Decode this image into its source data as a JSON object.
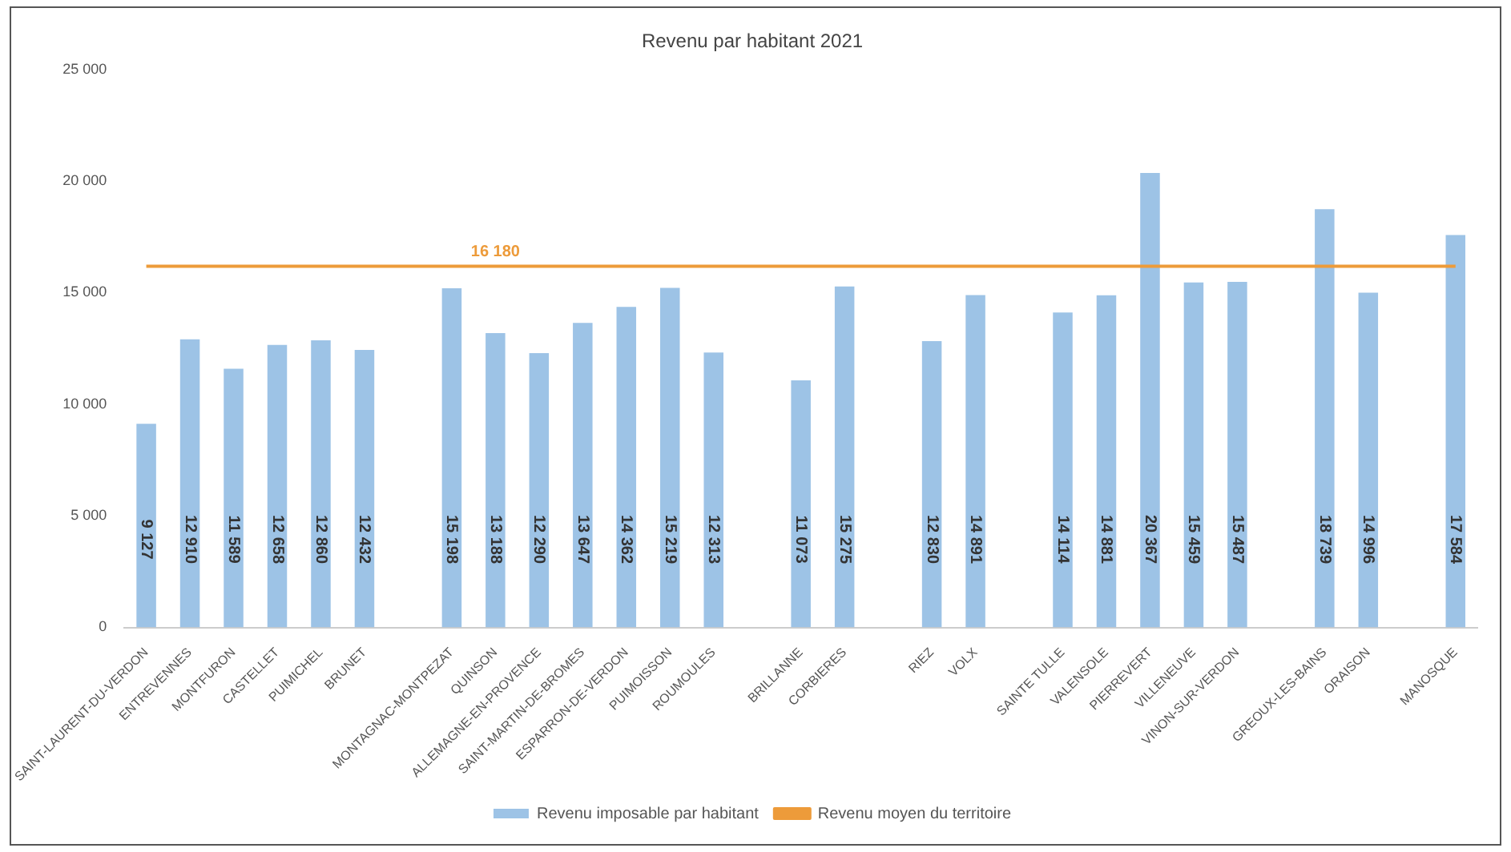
{
  "chart_data": {
    "type": "bar",
    "title": "Revenu par habitant 2021",
    "categories": [
      "SAINT-LAURENT-DU-VERDON",
      "ENTREVENNES",
      "MONTFURON",
      "CASTELLET",
      "PUIMICHEL",
      "BRUNET",
      null,
      "MONTAGNAC-MONTPEZAT",
      "QUINSON",
      "ALLEMAGNE-EN-PROVENCE",
      "SAINT-MARTIN-DE-BROMES",
      "ESPARRON-DE-VERDON",
      "PUIMOISSON",
      "ROUMOULES",
      null,
      "BRILLANNE",
      "CORBIERES",
      null,
      "RIEZ",
      "VOLX",
      null,
      "SAINTE TULLE",
      "VALENSOLE",
      "PIERREVERT",
      "VILLENEUVE",
      "VINON-SUR-VERDON",
      null,
      "GREOUX-LES-BAINS",
      "ORAISON",
      null,
      "MANOSQUE"
    ],
    "series": [
      {
        "name": "Revenu imposable par habitant",
        "color": "#9dc3e6",
        "values": [
          9127,
          12910,
          11589,
          12658,
          12860,
          12432,
          null,
          15198,
          13188,
          12290,
          13647,
          14362,
          15219,
          12313,
          null,
          11073,
          15275,
          null,
          12830,
          14891,
          null,
          14114,
          14881,
          20367,
          15459,
          15487,
          null,
          18739,
          14996,
          null,
          17584
        ],
        "value_labels": [
          "9 127",
          "12 910",
          "11 589",
          "12 658",
          "12 860",
          "12 432",
          null,
          "15 198",
          "13 188",
          "12 290",
          "13 647",
          "14 362",
          "15 219",
          "12 313",
          null,
          "11 073",
          "15 275",
          null,
          "12 830",
          "14 891",
          null,
          "14 114",
          "14 881",
          "20 367",
          "15 459",
          "15 487",
          null,
          "18 739",
          "14 996",
          null,
          "17 584"
        ]
      },
      {
        "name": "Revenu moyen du territoire",
        "type": "line",
        "color": "#ed9b3a",
        "values": [
          16180,
          16180,
          16180,
          16180,
          16180,
          16180,
          16180,
          16180,
          16180,
          16180,
          16180,
          16180,
          16180,
          16180,
          16180,
          16180,
          16180,
          16180,
          16180,
          16180,
          16180,
          16180,
          16180,
          16180,
          16180,
          16180,
          16180,
          16180,
          16180,
          16180,
          16180
        ],
        "value_labels": [
          null,
          null,
          null,
          null,
          null,
          null,
          null,
          null,
          "16 180",
          null,
          null,
          null,
          null,
          null,
          null,
          null,
          null,
          null,
          null,
          null,
          null,
          null,
          null,
          null,
          null,
          null,
          null,
          null,
          null,
          null,
          null
        ]
      }
    ],
    "ylim": [
      0,
      25000
    ],
    "yticks": [
      {
        "value": 0,
        "label": "0"
      },
      {
        "value": 5000,
        "label": "5 000"
      },
      {
        "value": 10000,
        "label": "10 000"
      },
      {
        "value": 15000,
        "label": "15 000"
      },
      {
        "value": 20000,
        "label": "20 000"
      },
      {
        "value": 25000,
        "label": "25 000"
      }
    ],
    "grid": false,
    "legend": "bottom",
    "marker": "none",
    "line_style": "solid"
  }
}
